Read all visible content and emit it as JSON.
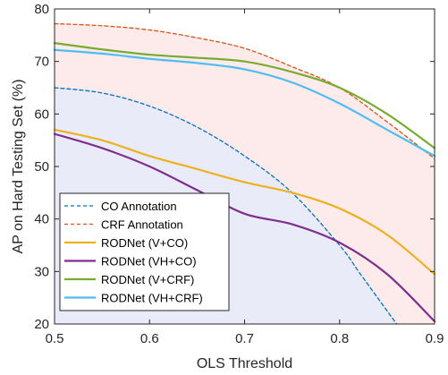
{
  "chart_data": {
    "type": "line",
    "title": "",
    "xlabel": "OLS Threshold",
    "ylabel": "AP on Hard Testing Set (%)",
    "xlim": [
      0.5,
      0.9
    ],
    "ylim": [
      20,
      80
    ],
    "xticks": [
      0.5,
      0.6,
      0.7,
      0.8,
      0.9
    ],
    "xtick_labels": [
      "0.5",
      "0.6",
      "0.7",
      "0.8",
      "0.9"
    ],
    "yticks": [
      20,
      30,
      40,
      50,
      60,
      70,
      80
    ],
    "ytick_labels": [
      "20",
      "30",
      "40",
      "50",
      "60",
      "70",
      "80"
    ],
    "grid": false,
    "legend_position": "bottom-left",
    "shaded_regions": [
      {
        "bound": "CRF Annotation",
        "color": "#FDEBEC"
      },
      {
        "bound": "CO Annotation",
        "color": "#EAEBF8"
      }
    ],
    "series": [
      {
        "name": "CO Annotation",
        "color": "#0072BD",
        "style": "dashed",
        "x": [
          0.5,
          0.55,
          0.6,
          0.65,
          0.7,
          0.75,
          0.8,
          0.82,
          0.84,
          0.86
        ],
        "y": [
          65,
          64,
          61.5,
          57.5,
          52,
          45,
          35,
          30,
          25,
          20
        ]
      },
      {
        "name": "CRF Annotation",
        "color": "#D95319",
        "style": "dashed",
        "x": [
          0.5,
          0.55,
          0.6,
          0.65,
          0.7,
          0.75,
          0.8,
          0.85,
          0.9
        ],
        "y": [
          77.2,
          76.8,
          76,
          74.5,
          72.5,
          69,
          65,
          58.5,
          51.5
        ]
      },
      {
        "name": "RODNet (V+CO)",
        "color": "#EDB120",
        "style": "solid",
        "x": [
          0.5,
          0.55,
          0.6,
          0.65,
          0.7,
          0.75,
          0.8,
          0.85,
          0.9
        ],
        "y": [
          57,
          55,
          52,
          49.5,
          47,
          45,
          42,
          37,
          29.5
        ]
      },
      {
        "name": "RODNet (VH+CO)",
        "color": "#7E2F8E",
        "style": "solid",
        "x": [
          0.5,
          0.55,
          0.6,
          0.65,
          0.7,
          0.75,
          0.8,
          0.85,
          0.9
        ],
        "y": [
          56.2,
          53.5,
          50,
          45.5,
          41,
          39,
          35.5,
          29.5,
          20.5
        ]
      },
      {
        "name": "RODNet (V+CRF)",
        "color": "#77AC30",
        "style": "solid",
        "x": [
          0.5,
          0.55,
          0.6,
          0.65,
          0.7,
          0.75,
          0.8,
          0.85,
          0.9
        ],
        "y": [
          73.5,
          72.3,
          71.3,
          70.7,
          70,
          68,
          65,
          60,
          53.5
        ]
      },
      {
        "name": "RODNet (VH+CRF)",
        "color": "#4DBEEE",
        "style": "solid",
        "x": [
          0.5,
          0.55,
          0.6,
          0.65,
          0.7,
          0.75,
          0.8,
          0.85,
          0.9
        ],
        "y": [
          72.2,
          71.5,
          70.5,
          69.7,
          68.5,
          66,
          62,
          57,
          52
        ]
      }
    ]
  }
}
